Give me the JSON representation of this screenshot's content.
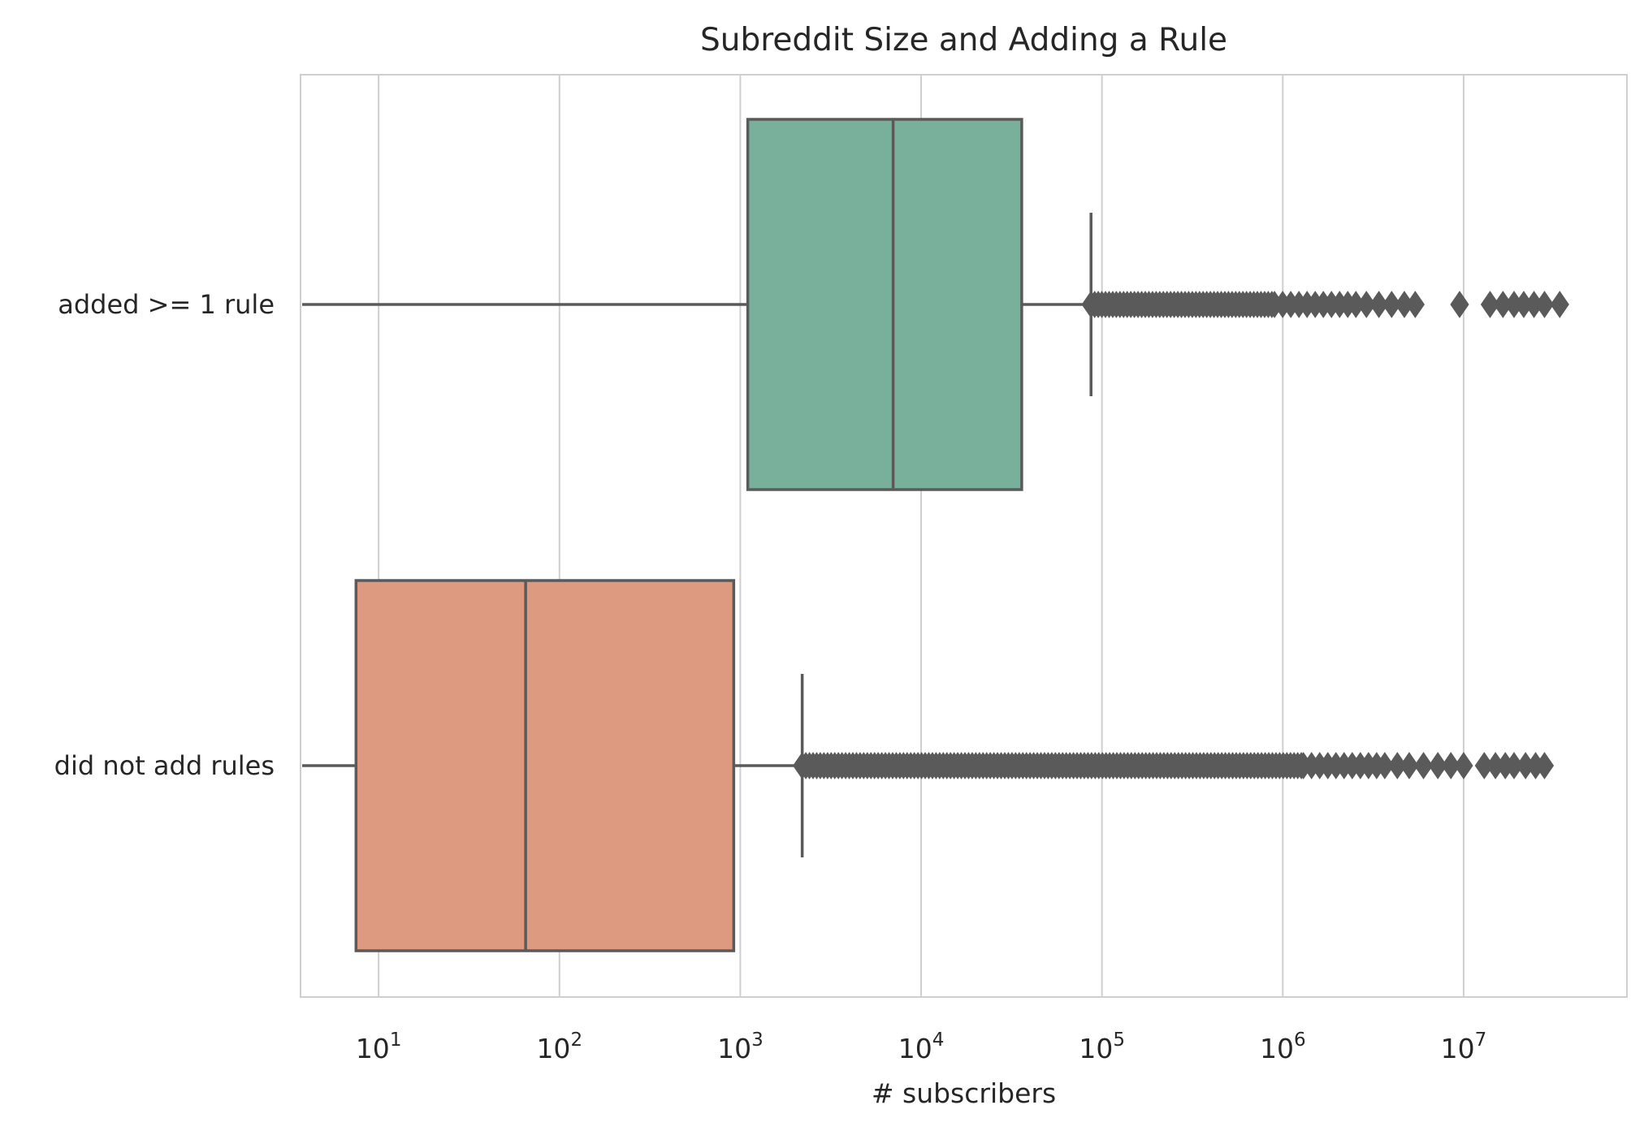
{
  "chart_data": {
    "type": "boxplot",
    "orientation": "horizontal",
    "title": "Subreddit Size and Adding a Rule",
    "xlabel": "# subscribers",
    "ylabel": "",
    "xscale": "log",
    "xlim": [
      3.7,
      80000000
    ],
    "grid": "vertical",
    "xticks": [
      {
        "value": 10,
        "base": "10",
        "exp": "1"
      },
      {
        "value": 100,
        "base": "10",
        "exp": "2"
      },
      {
        "value": 1000,
        "base": "10",
        "exp": "3"
      },
      {
        "value": 10000,
        "base": "10",
        "exp": "4"
      },
      {
        "value": 100000,
        "base": "10",
        "exp": "5"
      },
      {
        "value": 1000000,
        "base": "10",
        "exp": "6"
      },
      {
        "value": 10000000,
        "base": "10",
        "exp": "7"
      }
    ],
    "categories": [
      "added >= 1 rule",
      "did not add rules"
    ],
    "boxes": [
      {
        "category": "added >= 1 rule",
        "color": "#78b09c",
        "whisker_low": 3.7,
        "q1": 1100,
        "median": 7000,
        "q3": 36000,
        "whisker_high": 87000,
        "outliers_dense_from": 87000,
        "outliers_dense_to": 900000,
        "outliers_medium_from": 900000,
        "outliers_medium_to": 2600000,
        "outliers_sparse": [
          2900000,
          3400000,
          4000000,
          4700000,
          5400000,
          9500000,
          14000000,
          16500000,
          19000000,
          21500000,
          24500000,
          28000000,
          34000000
        ]
      },
      {
        "category": "did not add rules",
        "color": "#dd9a80",
        "whisker_low": 3.7,
        "q1": 7.5,
        "median": 65,
        "q3": 920,
        "whisker_high": 2200,
        "outliers_dense_from": 2200,
        "outliers_dense_to": 1300000,
        "outliers_medium_from": 1300000,
        "outliers_medium_to": 3800000,
        "outliers_sparse": [
          4300000,
          5000000,
          6000000,
          7200000,
          8500000,
          10000000,
          13000000,
          15000000,
          17000000,
          19000000,
          22000000,
          25000000,
          28000000
        ]
      }
    ],
    "box_line_color": "#5a5a5a",
    "grid_color": "#cfcfcf",
    "frame_color": "#cfcfcf"
  }
}
